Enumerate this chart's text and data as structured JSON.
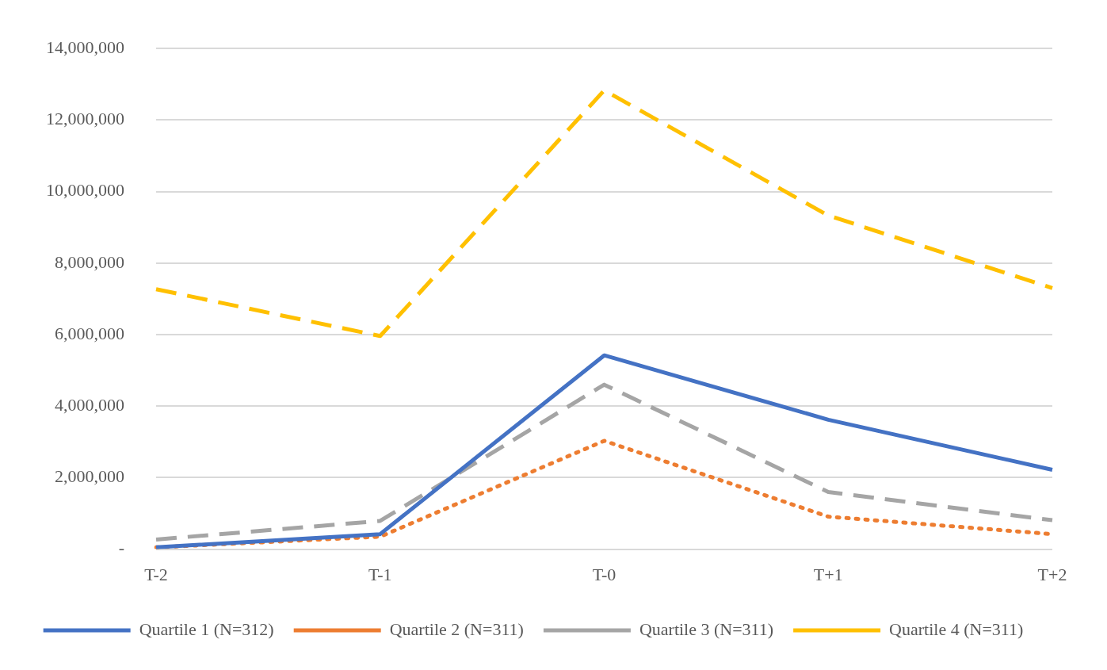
{
  "chart_data": {
    "type": "line",
    "categories": [
      "T-2",
      "T-1",
      "T-0",
      "T+1",
      "T+2"
    ],
    "series": [
      {
        "name": "Quartile 1 (N=312)",
        "color": "#4472c4",
        "line_style": "solid",
        "values": [
          50000,
          420000,
          5420000,
          3620000,
          2220000
        ]
      },
      {
        "name": "Quartile 2 (N=311)",
        "color": "#ed7d31",
        "line_style": "dotted",
        "values": [
          50000,
          350000,
          3030000,
          910000,
          420000
        ]
      },
      {
        "name": "Quartile 3 (N=311)",
        "color": "#a5a5a5",
        "line_style": "dashed",
        "values": [
          270000,
          790000,
          4600000,
          1600000,
          810000
        ]
      },
      {
        "name": "Quartile 4 (N=311)",
        "color": "#ffc000",
        "line_style": "dashed",
        "values": [
          7270000,
          5960000,
          12830000,
          9330000,
          7300000
        ]
      }
    ],
    "ylim": [
      0,
      14000000
    ],
    "yticks": [
      {
        "value": 0,
        "label": "-"
      },
      {
        "value": 2000000,
        "label": "2,000,000"
      },
      {
        "value": 4000000,
        "label": "4,000,000"
      },
      {
        "value": 6000000,
        "label": "6,000,000"
      },
      {
        "value": 8000000,
        "label": "8,000,000"
      },
      {
        "value": 10000000,
        "label": "10,000,000"
      },
      {
        "value": 12000000,
        "label": "12,000,000"
      },
      {
        "value": 14000000,
        "label": "14,000,000"
      }
    ],
    "grid": "y",
    "legend": "bottom",
    "marker": "none"
  }
}
